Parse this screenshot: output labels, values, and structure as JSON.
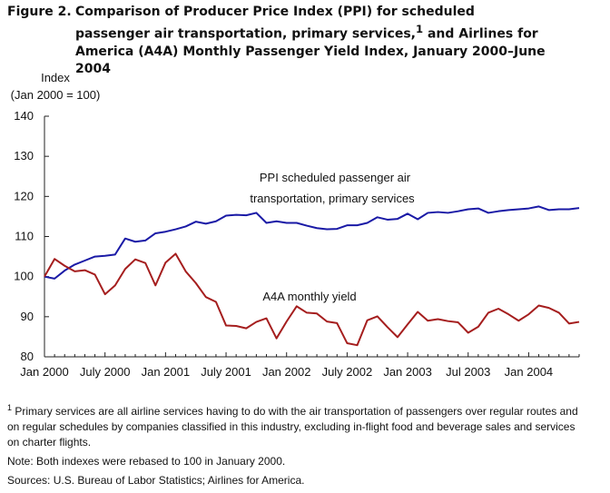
{
  "figure": {
    "label": "Figure 2.",
    "title": "Comparison of Producer Price Index (PPI) for scheduled passenger air transportation, primary services,",
    "title_sup": "1",
    "title_rest": " and Airlines for America (A4A) Monthly Passenger Yield Index, January 2000–June 2004"
  },
  "chart_data": {
    "type": "line",
    "ylabel_line1": "Index",
    "ylabel_line2": "(Jan 2000 = 100)",
    "ylim": [
      80,
      140
    ],
    "yticks": [
      80,
      90,
      100,
      110,
      120,
      130,
      140
    ],
    "x_start": "Jan 2000",
    "x_end": "Jun 2004",
    "x_tick_labels": [
      {
        "index": 0,
        "label": "Jan 2000"
      },
      {
        "index": 6,
        "label": "July 2000"
      },
      {
        "index": 12,
        "label": "Jan 2001"
      },
      {
        "index": 18,
        "label": "July 2001"
      },
      {
        "index": 24,
        "label": "Jan 2002"
      },
      {
        "index": 30,
        "label": "July 2002"
      },
      {
        "index": 36,
        "label": "Jan 2003"
      },
      {
        "index": 42,
        "label": "Jul 2003"
      },
      {
        "index": 48,
        "label": "Jan 2004"
      }
    ],
    "grid": false,
    "series": [
      {
        "name": "PPI scheduled passenger air transportation, primary services",
        "color": "#1a1aa6",
        "values": [
          100,
          99.5,
          101.5,
          103,
          104,
          105,
          105.2,
          105.5,
          109.5,
          108.7,
          109,
          110.8,
          111.2,
          111.8,
          112.5,
          113.7,
          113.2,
          113.8,
          115.2,
          115.4,
          115.3,
          115.9,
          113.4,
          113.8,
          113.4,
          113.4,
          112.7,
          112.1,
          111.8,
          111.9,
          112.8,
          112.8,
          113.4,
          114.8,
          114.2,
          114.4,
          115.7,
          114.3,
          115.9,
          116.1,
          115.9,
          116.3,
          116.8,
          117,
          115.9,
          116.3,
          116.6,
          116.8,
          117,
          117.5,
          116.6,
          116.8,
          116.8,
          117.1
        ]
      },
      {
        "name": "A4A monthly yield",
        "color": "#a51e1e",
        "values": [
          100,
          104.4,
          102.7,
          101.3,
          101.6,
          100.5,
          95.6,
          97.8,
          101.9,
          104.3,
          103.4,
          97.8,
          103.5,
          105.7,
          101.3,
          98.4,
          94.9,
          93.7,
          87.8,
          87.7,
          87.1,
          88.7,
          89.6,
          84.6,
          88.8,
          92.6,
          91,
          90.8,
          88.8,
          88.4,
          83.4,
          82.9,
          89.1,
          90.1,
          87.4,
          84.9,
          88.1,
          91.2,
          89,
          89.4,
          88.9,
          88.6,
          86,
          87.5,
          91,
          92,
          90.6,
          89,
          90.6,
          92.8,
          92.2,
          91,
          88.3,
          88.7
        ]
      }
    ],
    "annotations": [
      {
        "line1": "PPI scheduled passenger air",
        "line2": "transportation,  primary services"
      },
      {
        "line1": "A4A monthly yield"
      }
    ]
  },
  "notes": {
    "footnote_mark": "1",
    "footnote": "Primary services are all airline services having to do with the air transportation  of passengers over regular routes and on regular schedules by companies classified in this industry, excluding in-flight food and beverage sales and services on charter flights.",
    "note": "Note:  Both indexes were rebased to 100 in January 2000.",
    "sources": "Sources:  U.S. Bureau of Labor Statistics; Airlines for America."
  }
}
